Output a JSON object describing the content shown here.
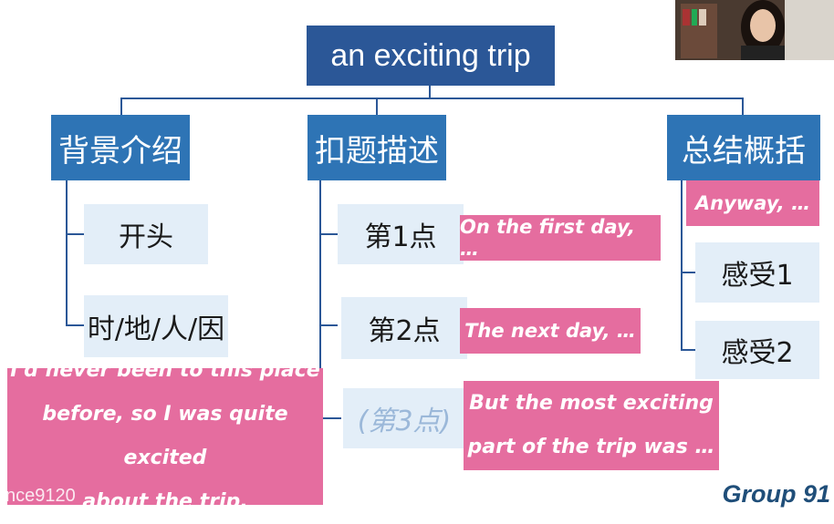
{
  "root": {
    "label": "an exciting trip"
  },
  "categories": [
    {
      "label": "背景介绍"
    },
    {
      "label": "扣题描述"
    },
    {
      "label": "总结概括"
    }
  ],
  "background": {
    "items": [
      "开头",
      "时/地/人/因"
    ]
  },
  "description": {
    "items": [
      "第1点",
      "第2点",
      "(第3点)"
    ]
  },
  "summary": {
    "items": [
      "感受1",
      "感受2"
    ]
  },
  "phrases": {
    "first_day": "On the first day, …",
    "next_day": "The next day, …",
    "anyway": "Anyway, …",
    "most_exciting_line1": "But the most exciting",
    "most_exciting_line2": "part of the trip was …",
    "never_been_line1": "I'd never been to this place",
    "never_been_line2": "before, so I was quite excited",
    "never_been_line3": "about the trip."
  },
  "footer": {
    "group": "Group 91",
    "watermark": "nce9120"
  },
  "colors": {
    "root": "#2b5797",
    "category": "#2e74b5",
    "subbox": "#e3eef8",
    "pink": "#e56d9f"
  }
}
